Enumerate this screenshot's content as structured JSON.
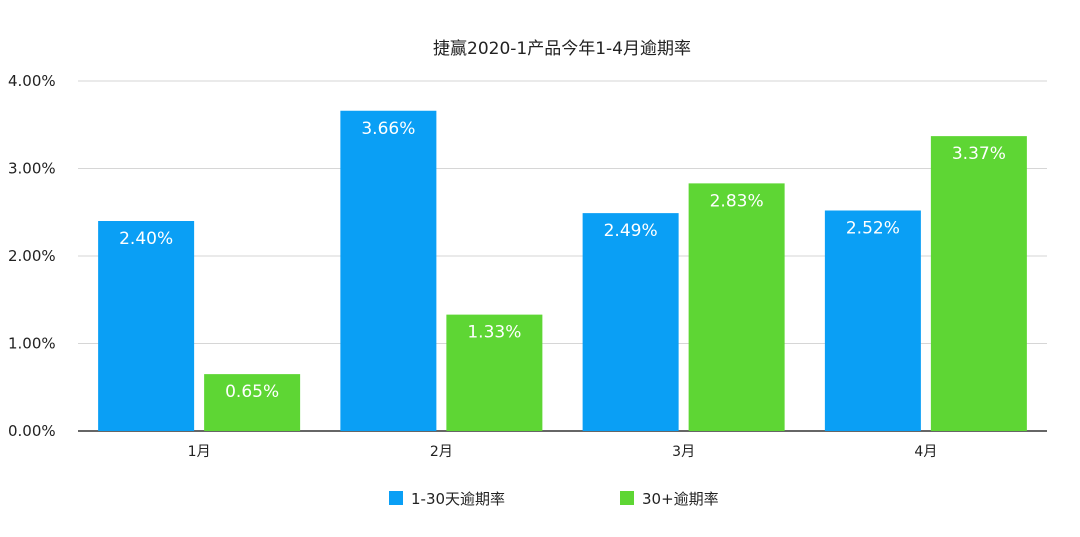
{
  "chart_data": {
    "type": "bar",
    "title": "捷赢2020-1产品今年1-4月逾期率",
    "xlabel": "",
    "ylabel": "",
    "categories": [
      "1月",
      "2月",
      "3月",
      "4月"
    ],
    "series": [
      {
        "name": "1-30天逾期率",
        "color": "#0a9ff5",
        "values": [
          2.4,
          3.66,
          2.49,
          2.52
        ],
        "labels": [
          "2.40%",
          "3.66%",
          "2.49%",
          "2.52%"
        ]
      },
      {
        "name": "30+逾期率",
        "color": "#5ed634",
        "values": [
          0.65,
          1.33,
          2.83,
          3.37
        ],
        "labels": [
          "0.65%",
          "1.33%",
          "2.83%",
          "3.37%"
        ]
      }
    ],
    "ylim": [
      0,
      4
    ],
    "yticks": [
      0,
      1,
      2,
      3,
      4
    ],
    "ytick_labels": [
      "0.00%",
      "1.00%",
      "2.00%",
      "3.00%",
      "4.00%"
    ],
    "grid": true,
    "legend_position": "bottom-center"
  }
}
